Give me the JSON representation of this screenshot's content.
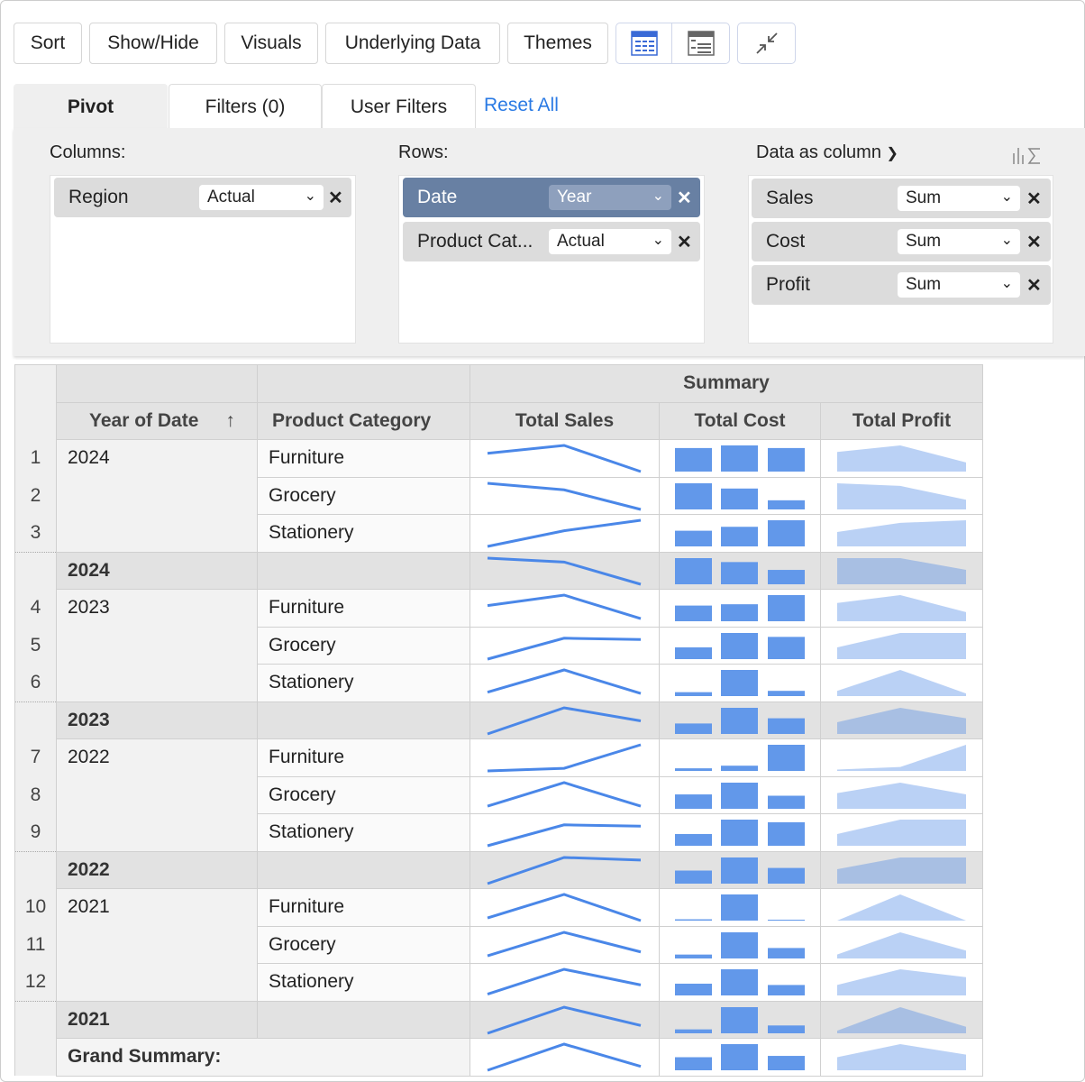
{
  "toolbar": {
    "sort": "Sort",
    "show_hide": "Show/Hide",
    "visuals": "Visuals",
    "underlying_data": "Underlying Data",
    "themes": "Themes"
  },
  "tabs": {
    "pivot": "Pivot",
    "filters": "Filters  (0)",
    "user_filters": "User Filters",
    "reset_all": "Reset All"
  },
  "config": {
    "columns_label": "Columns:",
    "rows_label": "Rows:",
    "data_label": "Data as column",
    "columns": [
      {
        "name": "Region",
        "agg": "Actual"
      }
    ],
    "rows": [
      {
        "name": "Date",
        "agg": "Year"
      },
      {
        "name": "Product Cat...",
        "agg": "Actual"
      }
    ],
    "data": [
      {
        "name": "Sales",
        "agg": "Sum"
      },
      {
        "name": "Cost",
        "agg": "Sum"
      },
      {
        "name": "Profit",
        "agg": "Sum"
      }
    ]
  },
  "table": {
    "summary_header": "Summary",
    "headers": {
      "year": "Year of Date",
      "sort_icon": "↑",
      "category": "Product Category",
      "sales": "Total Sales",
      "cost": "Total Cost",
      "profit": "Total Profit"
    },
    "grand_label": "Grand Summary:",
    "colors": {
      "line": "#4a87e8",
      "bar": "#6298ea",
      "area": "#bad1f5",
      "area_sub": "#a8bfe3"
    },
    "groups": [
      {
        "year": "2024",
        "rows": [
          {
            "n": "1",
            "cat": "Furniture",
            "sales": [
              0.7,
              1,
              0
            ],
            "cost": [
              0.9,
              1,
              0.9
            ],
            "profit": [
              0.75,
              1,
              0.35
            ]
          },
          {
            "n": "2",
            "cat": "Grocery",
            "sales": [
              1,
              0.75,
              0
            ],
            "cost": [
              1,
              0.8,
              0.35
            ],
            "profit": [
              1,
              0.9,
              0.37
            ]
          },
          {
            "n": "3",
            "cat": "Stationery",
            "sales": [
              0,
              0.6,
              1
            ],
            "cost": [
              0.6,
              0.75,
              1
            ],
            "profit": [
              0.55,
              0.9,
              1
            ]
          }
        ],
        "total": {
          "sales": [
            1,
            0.85,
            0
          ],
          "cost": [
            1,
            0.85,
            0.55
          ],
          "profit": [
            1,
            1,
            0.55
          ]
        }
      },
      {
        "year": "2023",
        "rows": [
          {
            "n": "4",
            "cat": "Furniture",
            "sales": [
              0.6,
              1,
              0.1
            ],
            "cost": [
              0.6,
              0.65,
              1
            ],
            "profit": [
              0.7,
              1,
              0.35
            ]
          },
          {
            "n": "5",
            "cat": "Grocery",
            "sales": [
              0,
              0.8,
              0.75
            ],
            "cost": [
              0.45,
              1,
              0.85
            ],
            "profit": [
              0.45,
              1,
              1
            ]
          },
          {
            "n": "6",
            "cat": "Stationery",
            "sales": [
              0.15,
              1,
              0.1
            ],
            "cost": [
              0.15,
              1,
              0.2
            ],
            "profit": [
              0.2,
              1,
              0.1
            ]
          }
        ],
        "total": {
          "sales": [
            0,
            1,
            0.5
          ],
          "cost": [
            0.4,
            1,
            0.6
          ],
          "profit": [
            0.45,
            1,
            0.6
          ]
        }
      },
      {
        "year": "2022",
        "rows": [
          {
            "n": "7",
            "cat": "Furniture",
            "sales": [
              0,
              0.1,
              1
            ],
            "cost": [
              0.1,
              0.2,
              1
            ],
            "profit": [
              0.05,
              0.15,
              1
            ]
          },
          {
            "n": "8",
            "cat": "Grocery",
            "sales": [
              0.1,
              1,
              0.1
            ],
            "cost": [
              0.55,
              1,
              0.5
            ],
            "profit": [
              0.6,
              1,
              0.55
            ]
          },
          {
            "n": "9",
            "cat": "Stationery",
            "sales": [
              0,
              0.8,
              0.75
            ],
            "cost": [
              0.45,
              1,
              0.9
            ],
            "profit": [
              0.45,
              1,
              1
            ]
          }
        ],
        "total": {
          "sales": [
            0,
            1,
            0.9
          ],
          "cost": [
            0.5,
            1,
            0.6
          ],
          "profit": [
            0.55,
            1,
            1
          ]
        }
      },
      {
        "year": "2021",
        "rows": [
          {
            "n": "10",
            "cat": "Furniture",
            "sales": [
              0.1,
              1,
              0
            ],
            "cost": [
              0.05,
              1,
              0
            ],
            "profit": [
              0,
              1,
              0
            ]
          },
          {
            "n": "11",
            "cat": "Grocery",
            "sales": [
              0.1,
              1,
              0.25
            ],
            "cost": [
              0.15,
              1,
              0.4
            ],
            "profit": [
              0.15,
              1,
              0.3
            ]
          },
          {
            "n": "12",
            "cat": "Stationery",
            "sales": [
              0.05,
              1,
              0.4
            ],
            "cost": [
              0.45,
              1,
              0.4
            ],
            "profit": [
              0.4,
              1,
              0.7
            ]
          }
        ],
        "total": {
          "sales": [
            0,
            1,
            0.3
          ],
          "cost": [
            0.15,
            1,
            0.3
          ],
          "profit": [
            0.1,
            1,
            0.25
          ]
        }
      }
    ],
    "grand": {
      "sales": [
        0,
        1,
        0.15
      ],
      "cost": [
        0.5,
        1,
        0.55
      ],
      "profit": [
        0.5,
        1,
        0.6
      ]
    }
  }
}
